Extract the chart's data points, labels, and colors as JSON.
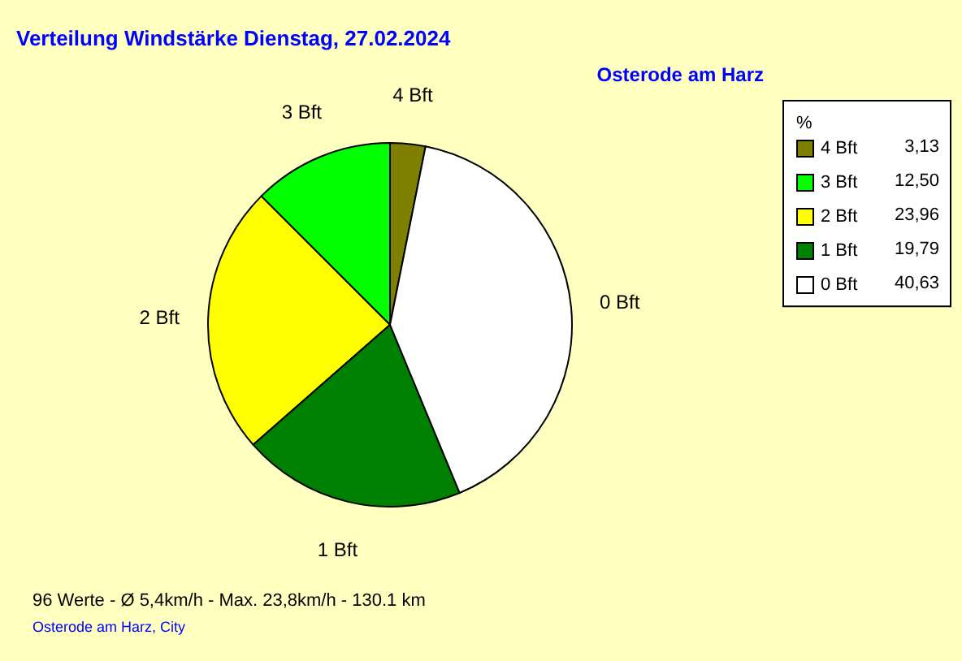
{
  "chart_data": {
    "type": "pie",
    "title": "Verteilung Windstärke  Dienstag, 27.02.2024",
    "subtitle": "Osterode am Harz",
    "categories": [
      "4 Bft",
      "3 Bft",
      "2 Bft",
      "1 Bft",
      "0 Bft"
    ],
    "values": [
      3.13,
      12.5,
      23.96,
      19.79,
      40.63
    ],
    "value_labels": [
      "3,13",
      "12,50",
      "23,96",
      "19,79",
      "40,63"
    ],
    "colors": [
      "#808000",
      "#00ff00",
      "#ffff00",
      "#008000",
      "#ffffff"
    ],
    "legend_title": "%",
    "legend": "top right",
    "annotations": [
      "96 Werte   -   Ø 5,4km/h  -  Max. 23,8km/h  -   130.1 km",
      "Osterode am Harz, City"
    ]
  }
}
